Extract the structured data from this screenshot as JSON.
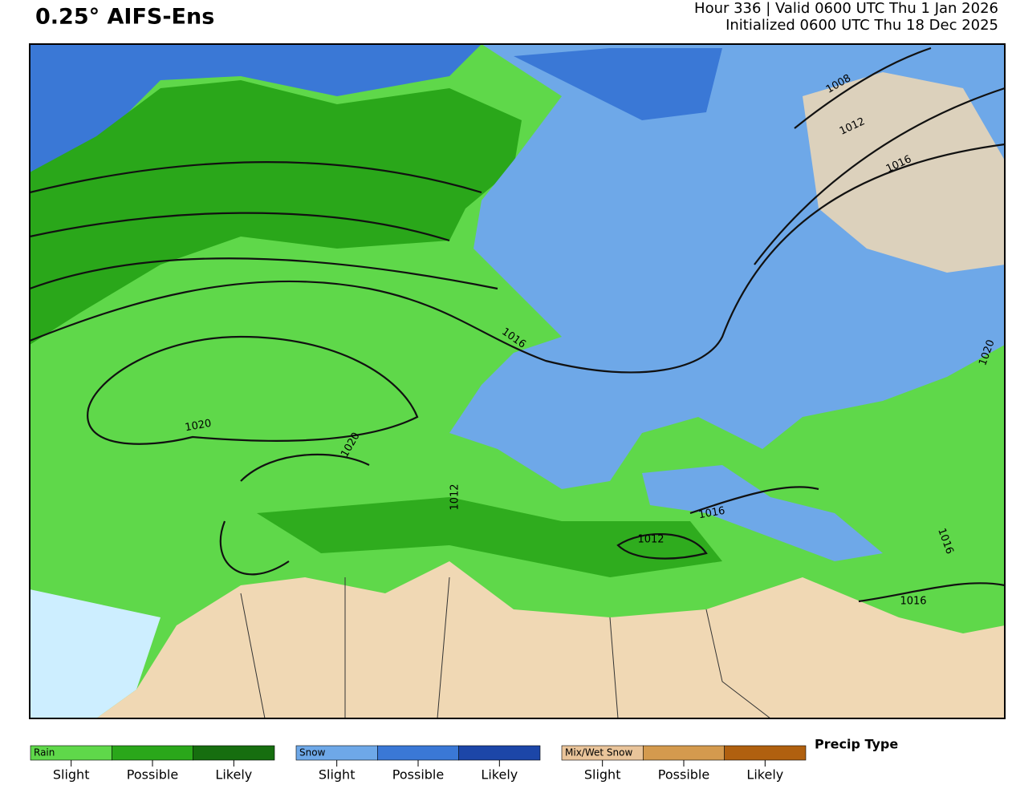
{
  "header": {
    "title": "0.25° AIFS-Ens",
    "line1": "Hour 336 | Valid 0600 UTC Thu 1 Jan 2026",
    "line2": "Initialized 0600 UTC Thu 18 Dec 2025"
  },
  "map": {
    "contour_labels": [
      "1008",
      "1012",
      "1016",
      "1016",
      "1020",
      "1020",
      "1012",
      "1012",
      "1016",
      "1016",
      "1016",
      "1020"
    ]
  },
  "legend": {
    "title": "Precip Type",
    "groups": [
      {
        "name": "Rain",
        "levels": [
          "Slight",
          "Possible",
          "Likely"
        ]
      },
      {
        "name": "Snow",
        "levels": [
          "Slight",
          "Possible",
          "Likely"
        ]
      },
      {
        "name": "Mix/Wet Snow",
        "levels": [
          "Slight",
          "Possible",
          "Likely"
        ]
      }
    ]
  }
}
